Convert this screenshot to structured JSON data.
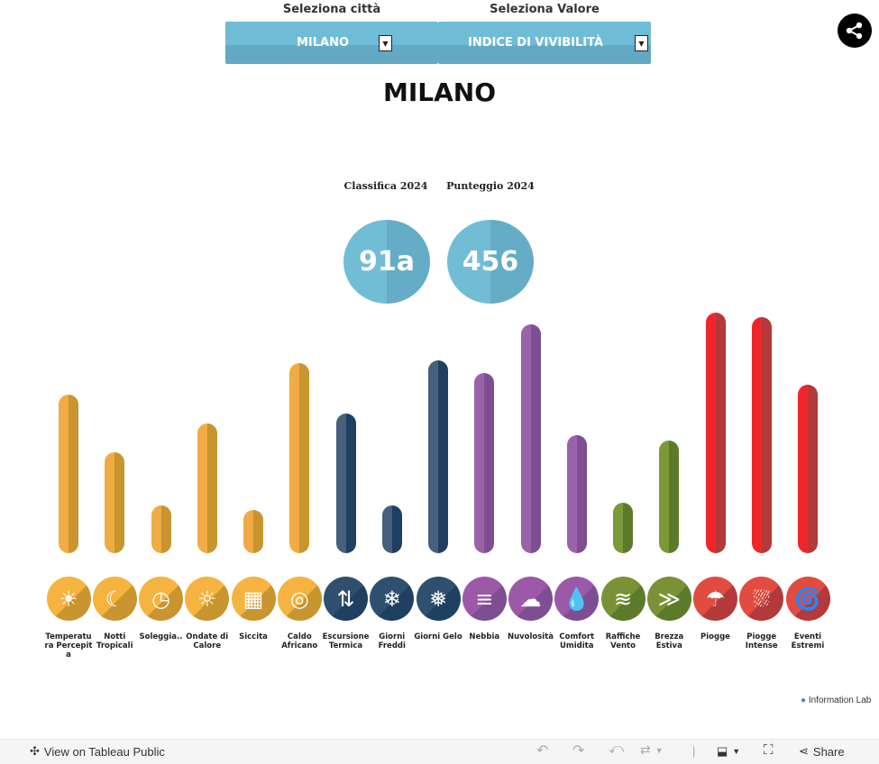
{
  "filters": {
    "city": {
      "label": "Seleziona città",
      "value": "MILANO"
    },
    "metric": {
      "label": "Seleziona Valore",
      "value": "INDICE DI VIVIBILITÀ"
    }
  },
  "title": "MILANO",
  "kpis": {
    "rank": {
      "label": "Classifica 2024",
      "value": "91a"
    },
    "score": {
      "label": "Punteggio 2024",
      "value": "456"
    }
  },
  "colors": {
    "accent": "#6fbcd6",
    "orange": "#f0a93d",
    "navy": "#2f4f6e",
    "purple": "#8e5aa0",
    "green": "#6f8c35",
    "red": "#e8262a"
  },
  "chart_data": {
    "type": "bar",
    "note_scale": "relative bar length, no axis printed",
    "categories": [
      "Temperatura Percepita",
      "Notti Tropicali",
      "Soleggia..",
      "Ondate di Calore",
      "Siccita",
      "Caldo Africano",
      "Escursione Termica",
      "Giorni Freddi",
      "Giorni Gelo",
      "Nebbia",
      "Nuvolosità",
      "Comfort Umidita",
      "Raffiche Vento",
      "Brezza Estiva",
      "Piogge",
      "Piogge Intense",
      "Eventi Estremi"
    ],
    "values": [
      66,
      42,
      20,
      54,
      18,
      79,
      58,
      20,
      80,
      75,
      95,
      49,
      21,
      47,
      100,
      98,
      70
    ],
    "groups": [
      "orange",
      "orange",
      "orange",
      "orange",
      "orange",
      "orange",
      "navy",
      "navy",
      "navy",
      "purple",
      "purple",
      "purple",
      "green",
      "green",
      "red",
      "red",
      "red"
    ]
  },
  "indicators": [
    {
      "label": "Temperatu ra Percepit a",
      "icon": "sun-icon",
      "glyph": "☀"
    },
    {
      "label": "Notti Tropicali",
      "icon": "moon-icon",
      "glyph": "☾"
    },
    {
      "label": "Soleggia..",
      "icon": "sun-clock-icon",
      "glyph": "◷"
    },
    {
      "label": "Ondate di Calore",
      "icon": "heatwave-sun-icon",
      "glyph": "☼"
    },
    {
      "label": "Siccita",
      "icon": "cracked-ground-icon",
      "glyph": "▦"
    },
    {
      "label": "Caldo Africano",
      "icon": "hot-sun-rings-icon",
      "glyph": "◎"
    },
    {
      "label": "Escursione Termica",
      "icon": "thermometer-updown-icon",
      "glyph": "⇅"
    },
    {
      "label": "Giorni Freddi",
      "icon": "snowflake-icon",
      "glyph": "❄"
    },
    {
      "label": "Giorni Gelo",
      "icon": "frost-thermometer-icon",
      "glyph": "❅"
    },
    {
      "label": "Nebbia",
      "icon": "fog-icon",
      "glyph": "≡"
    },
    {
      "label": "Nuvolosità",
      "icon": "cloud-icon",
      "glyph": "☁"
    },
    {
      "label": "Comfort Umidita",
      "icon": "humidity-drops-icon",
      "glyph": "💧"
    },
    {
      "label": "Raffiche Vento",
      "icon": "wind-icon",
      "glyph": "≋"
    },
    {
      "label": "Brezza Estiva",
      "icon": "breeze-icon",
      "glyph": "≫"
    },
    {
      "label": "Piogge",
      "icon": "rain-cloud-icon",
      "glyph": "☂"
    },
    {
      "label": "Piogge Intense",
      "icon": "heavy-rain-icon",
      "glyph": "⛆"
    },
    {
      "label": "Eventi Estremi",
      "icon": "hurricane-icon",
      "glyph": "🌀"
    }
  ],
  "logo": "Information Lab",
  "toolbar": {
    "view_label": "View on Tableau Public",
    "share_label": "Share"
  }
}
